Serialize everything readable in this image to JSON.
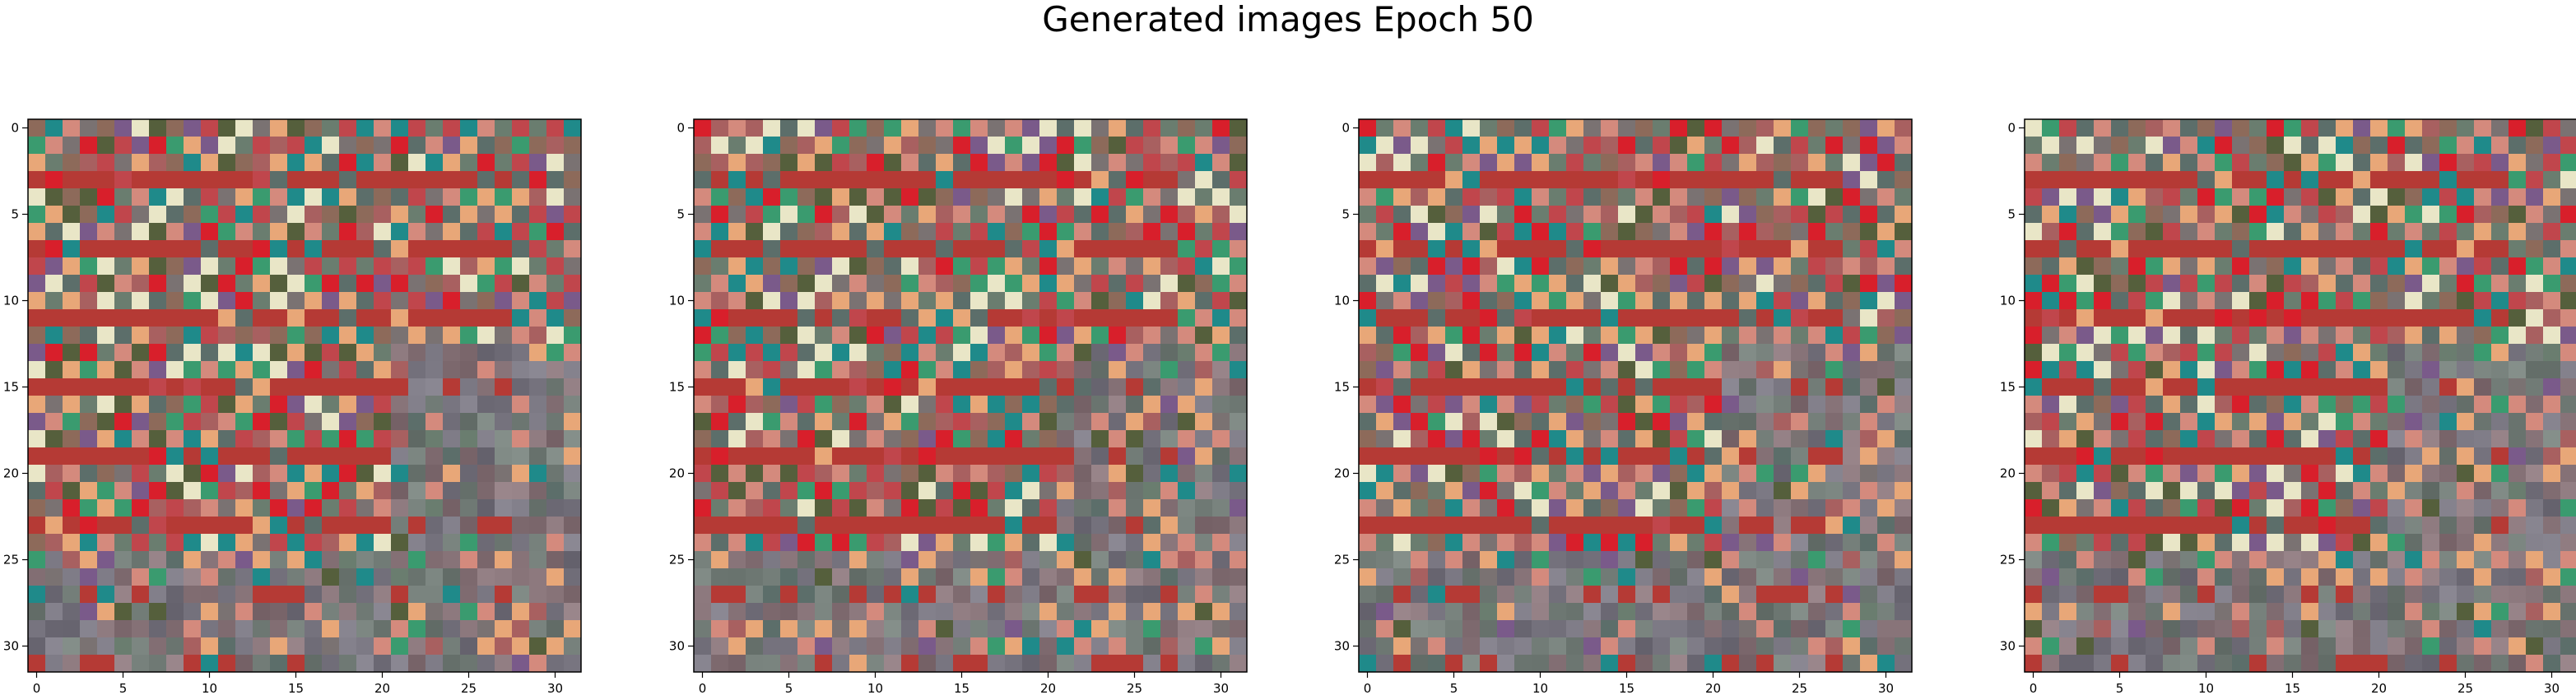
{
  "figure": {
    "title": "Generated images Epoch 50"
  },
  "chart_data": [
    {
      "type": "heatmap",
      "panel": 1,
      "grid_size": [
        32,
        32
      ],
      "xlim": [
        -0.5,
        31.5
      ],
      "ylim": [
        31.5,
        -0.5
      ],
      "x_ticks": [
        0,
        5,
        10,
        15,
        20,
        25,
        30
      ],
      "y_ticks": [
        0,
        5,
        10,
        15,
        20,
        25,
        30
      ],
      "x_tick_labels": [
        "0",
        "5",
        "10",
        "15",
        "20",
        "25",
        "30"
      ],
      "y_tick_labels": [
        "0",
        "5",
        "10",
        "15",
        "20",
        "25",
        "30"
      ],
      "variant_seed": 11
    },
    {
      "type": "heatmap",
      "panel": 2,
      "grid_size": [
        32,
        32
      ],
      "xlim": [
        -0.5,
        31.5
      ],
      "ylim": [
        31.5,
        -0.5
      ],
      "x_ticks": [
        0,
        5,
        10,
        15,
        20,
        25,
        30
      ],
      "y_ticks": [
        0,
        5,
        10,
        15,
        20,
        25,
        30
      ],
      "x_tick_labels": [
        "0",
        "5",
        "10",
        "15",
        "20",
        "25",
        "30"
      ],
      "y_tick_labels": [
        "0",
        "5",
        "10",
        "15",
        "20",
        "25",
        "30"
      ],
      "variant_seed": 23
    },
    {
      "type": "heatmap",
      "panel": 3,
      "grid_size": [
        32,
        32
      ],
      "xlim": [
        -0.5,
        31.5
      ],
      "ylim": [
        31.5,
        -0.5
      ],
      "x_ticks": [
        0,
        5,
        10,
        15,
        20,
        25,
        30
      ],
      "y_ticks": [
        0,
        5,
        10,
        15,
        20,
        25,
        30
      ],
      "x_tick_labels": [
        "0",
        "5",
        "10",
        "15",
        "20",
        "25",
        "30"
      ],
      "y_tick_labels": [
        "0",
        "5",
        "10",
        "15",
        "20",
        "25",
        "30"
      ],
      "variant_seed": 37
    },
    {
      "type": "heatmap",
      "panel": 4,
      "grid_size": [
        32,
        32
      ],
      "xlim": [
        -0.5,
        31.5
      ],
      "ylim": [
        31.5,
        -0.5
      ],
      "x_ticks": [
        0,
        5,
        10,
        15,
        20,
        25,
        30
      ],
      "y_ticks": [
        0,
        5,
        10,
        15,
        20,
        25,
        30
      ],
      "x_tick_labels": [
        "0",
        "5",
        "10",
        "15",
        "20",
        "25",
        "30"
      ],
      "y_tick_labels": [
        "0",
        "5",
        "10",
        "15",
        "20",
        "25",
        "30"
      ],
      "variant_seed": 41
    }
  ],
  "palette": {
    "axis_color": "#000000",
    "colors": [
      "#7a7272",
      "#c0464c",
      "#e8a778",
      "#1f8a8a",
      "#555f3c",
      "#d81f2b",
      "#e9e6c7",
      "#b53a35",
      "#3a9b6f",
      "#7a5a8a",
      "#5c6e6a",
      "#d48a7d",
      "#8d6a5a",
      "#6a7d6f",
      "#a86060"
    ]
  }
}
